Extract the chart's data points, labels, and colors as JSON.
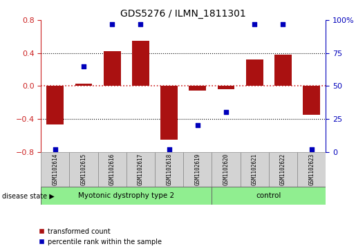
{
  "title": "GDS5276 / ILMN_1811301",
  "samples": [
    "GSM1102614",
    "GSM1102615",
    "GSM1102616",
    "GSM1102617",
    "GSM1102618",
    "GSM1102619",
    "GSM1102620",
    "GSM1102621",
    "GSM1102622",
    "GSM1102623"
  ],
  "bar_values": [
    -0.47,
    0.03,
    0.42,
    0.55,
    -0.65,
    -0.06,
    -0.04,
    0.32,
    0.38,
    -0.35
  ],
  "dot_values": [
    2,
    65,
    97,
    97,
    2,
    20,
    30,
    97,
    97,
    2
  ],
  "groups": [
    {
      "label": "Myotonic dystrophy type 2",
      "start": 0,
      "end": 6,
      "color": "#90EE90"
    },
    {
      "label": "control",
      "start": 6,
      "end": 10,
      "color": "#90EE90"
    }
  ],
  "ylim_left": [
    -0.8,
    0.8
  ],
  "ylim_right": [
    0,
    100
  ],
  "yticks_left": [
    -0.8,
    -0.4,
    0.0,
    0.4,
    0.8
  ],
  "yticks_right": [
    0,
    25,
    50,
    75,
    100
  ],
  "bar_color": "#AA1111",
  "dot_color": "#0000BB",
  "hline_color": "#CC2222",
  "grid_color": "black",
  "grid_values": [
    -0.4,
    0.4
  ],
  "background_color": "#ffffff",
  "label_transformed": "transformed count",
  "label_percentile": "percentile rank within the sample",
  "disease_state_label": "disease state",
  "left_axis_color": "#CC2222",
  "right_axis_color": "#0000BB",
  "cell_bg": "#d3d3d3",
  "cell_border": "#888888",
  "percent_label": "100%"
}
